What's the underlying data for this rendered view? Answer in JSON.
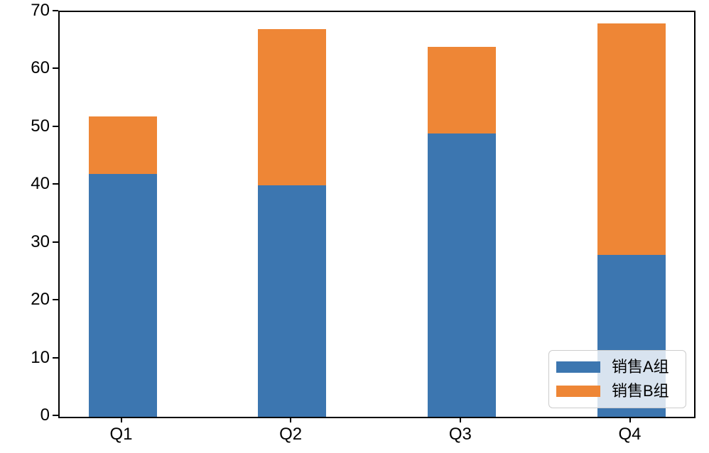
{
  "figure": {
    "background": "#ffffff",
    "spine_color": "#000000",
    "tick_color": "#000000",
    "legend": {
      "position": "lower right",
      "background": "rgba(255,255,255,0.8)",
      "border_color": "#cccccc"
    }
  },
  "chart_data": {
    "type": "bar",
    "stacked": true,
    "title": "",
    "xlabel": "",
    "ylabel": "",
    "categories": [
      "Q1",
      "Q2",
      "Q3",
      "Q4"
    ],
    "series": [
      {
        "name": "销售A组",
        "color": "#3c76b0",
        "values": [
          42,
          40,
          49,
          28
        ]
      },
      {
        "name": "销售B组",
        "color": "#ee8636",
        "values": [
          10,
          27,
          15,
          40
        ]
      }
    ],
    "totals": [
      52,
      67,
      64,
      68
    ],
    "ylim": [
      0,
      70
    ],
    "yticks": [
      0,
      10,
      20,
      30,
      40,
      50,
      60,
      70
    ],
    "grid": false,
    "legend_position": "lower right"
  }
}
